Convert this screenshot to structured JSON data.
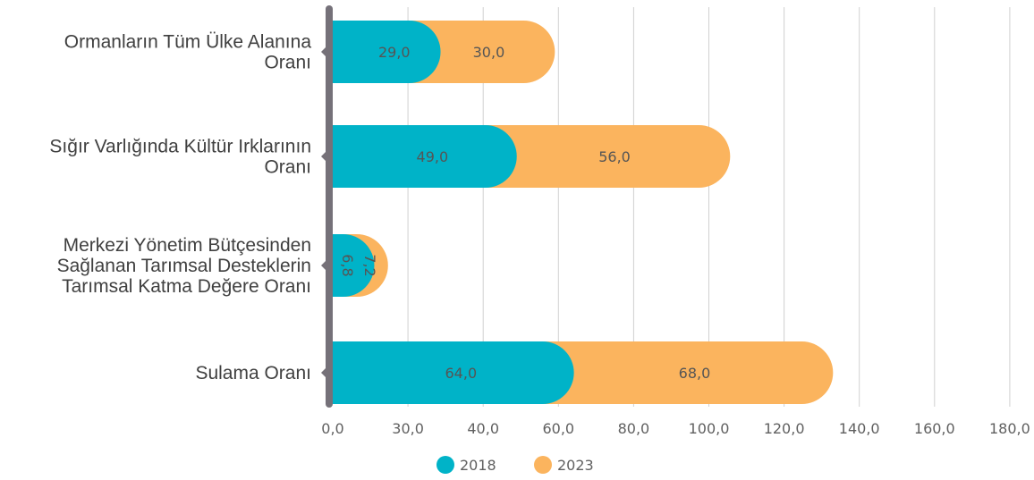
{
  "chart_data": {
    "type": "bar",
    "orientation": "horizontal",
    "stacked": true,
    "categories": [
      [
        "Ormanların Tüm Ülke Alanına",
        "Oranı"
      ],
      [
        "Sığır Varlığında Kültür Irklarının",
        "Oranı"
      ],
      [
        "Merkezi Yönetim Bütçesinden",
        "Sağlanan Tarımsal Desteklerin",
        "Tarımsal Katma Değere Oranı"
      ],
      [
        "Sulama Oranı"
      ]
    ],
    "series": [
      {
        "name": "2018",
        "color": "#00b3c8",
        "values": [
          29.0,
          49.0,
          6.8,
          64.0
        ],
        "labels": [
          "29,0",
          "49,0",
          "6,8",
          "64,0"
        ]
      },
      {
        "name": "2023",
        "color": "#fbb45e",
        "values": [
          30.0,
          56.0,
          7.2,
          68.0
        ],
        "labels": [
          "30,0",
          "56,0",
          "7,2",
          "68,0"
        ]
      }
    ],
    "x_ticks": [
      "0,0",
      "30,0",
      "40,0",
      "60,0",
      "80,0",
      "100,0",
      "120,0",
      "140,0",
      "160,0",
      "180,0"
    ],
    "xlim": [
      0,
      180
    ],
    "grid": "vertical",
    "legend_position": "bottom"
  }
}
